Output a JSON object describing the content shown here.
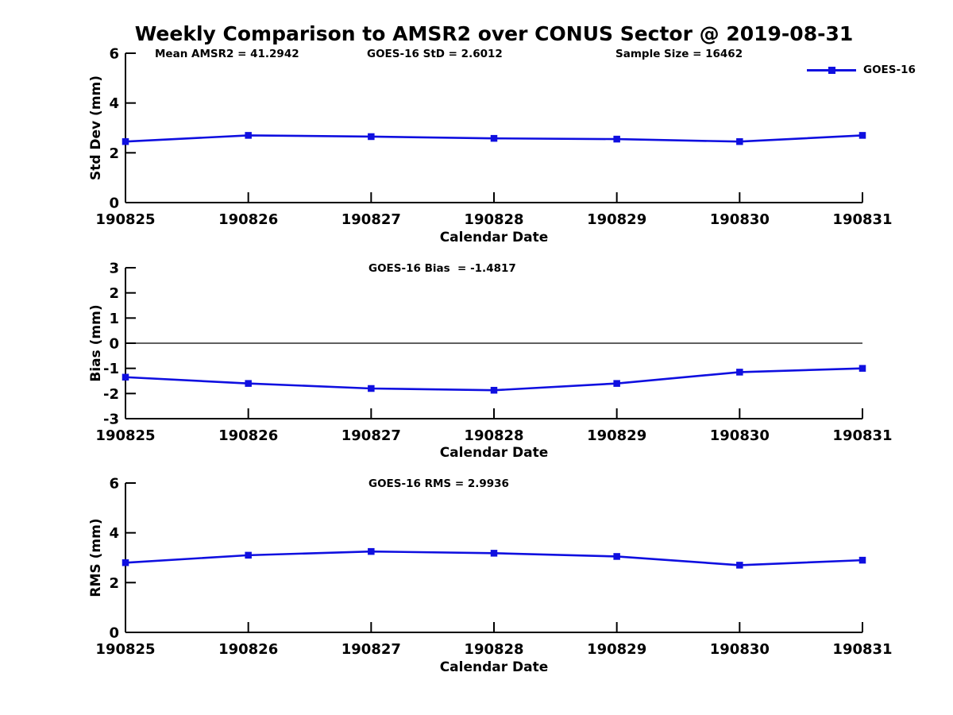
{
  "title": "Weekly Comparison to AMSR2 over CONUS Sector @ 2019-08-31",
  "colors": {
    "series": "#0F0FE0",
    "axis": "#000000",
    "text": "#000000"
  },
  "legend": {
    "label": "GOES-16",
    "marker": "filled-square",
    "position": "top-right"
  },
  "chart_data": [
    {
      "type": "line",
      "x": [
        "190825",
        "190826",
        "190827",
        "190828",
        "190829",
        "190830",
        "190831"
      ],
      "series": [
        {
          "name": "GOES-16",
          "values": [
            2.45,
            2.7,
            2.65,
            2.58,
            2.55,
            2.45,
            2.7
          ]
        }
      ],
      "xlabel": "Calendar Date",
      "ylabel": "Std Dev (mm)",
      "ylim": [
        0,
        6
      ],
      "yticks": [
        0,
        2,
        4,
        6
      ],
      "grid": false,
      "zero_line": false,
      "legend_position": "top-right",
      "annotations": [
        {
          "text": "Mean AMSR2 = 41.2942"
        },
        {
          "text": "GOES-16 StD = 2.6012"
        },
        {
          "text": "Sample Size = 16462"
        }
      ]
    },
    {
      "type": "line",
      "x": [
        "190825",
        "190826",
        "190827",
        "190828",
        "190829",
        "190830",
        "190831"
      ],
      "series": [
        {
          "name": "GOES-16",
          "values": [
            -1.35,
            -1.6,
            -1.8,
            -1.87,
            -1.6,
            -1.15,
            -1.0
          ]
        }
      ],
      "xlabel": "Calendar Date",
      "ylabel": "Bias (mm)",
      "ylim": [
        -3,
        3
      ],
      "yticks": [
        -3,
        -2,
        -1,
        0,
        1,
        2,
        3
      ],
      "grid": false,
      "zero_line": true,
      "annotations": [
        {
          "text": "GOES-16 Bias  = -1.4817"
        }
      ]
    },
    {
      "type": "line",
      "x": [
        "190825",
        "190826",
        "190827",
        "190828",
        "190829",
        "190830",
        "190831"
      ],
      "series": [
        {
          "name": "GOES-16",
          "values": [
            2.8,
            3.1,
            3.25,
            3.18,
            3.05,
            2.7,
            2.9
          ]
        }
      ],
      "xlabel": "Calendar Date",
      "ylabel": "RMS (mm)",
      "ylim": [
        0,
        6
      ],
      "yticks": [
        0,
        2,
        4,
        6
      ],
      "grid": false,
      "zero_line": false,
      "annotations": [
        {
          "text": "GOES-16 RMS = 2.9936"
        }
      ]
    }
  ]
}
